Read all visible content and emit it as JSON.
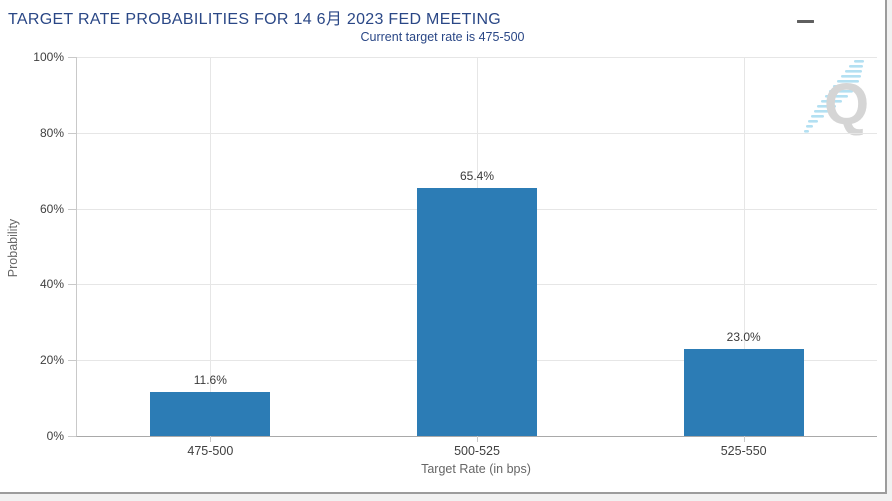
{
  "header": {
    "title": "TARGET RATE PROBABILITIES FOR 14 6月 2023 FED MEETING",
    "subtitle": "Current target rate is 475-500",
    "menu_icon": "hamburger-icon"
  },
  "chart_data": {
    "type": "bar",
    "title": "Target Rate Probabilities for 14 6月 2023 Fed Meeting",
    "categories": [
      "475-500",
      "500-525",
      "525-550"
    ],
    "values": [
      11.6,
      65.4,
      23.0
    ],
    "value_labels": [
      "11.6%",
      "65.4%",
      "23.0%"
    ],
    "xlabel": "Target Rate (in bps)",
    "ylabel": "Probability",
    "ylim": [
      0,
      100
    ],
    "yticks": [
      0,
      20,
      40,
      60,
      80,
      100
    ],
    "ytick_labels": [
      "0%",
      "20%",
      "40%",
      "60%",
      "80%",
      "100%"
    ],
    "grid": true,
    "legend": false,
    "bar_color": "#2c7cb5"
  },
  "watermark": {
    "letter": "Q"
  },
  "colors": {
    "title_text": "#2a4786",
    "bar": "#2c7cb5",
    "axis_line": "#a9a9a9",
    "gridline": "#e6e6e6",
    "tick_label": "#404040",
    "axis_title": "#666666",
    "watermark_gray": "#d5d5d5",
    "watermark_blue": "#b3e0f2",
    "frame_border": "#9c9c9c",
    "page_background": "#f1f1f1"
  }
}
